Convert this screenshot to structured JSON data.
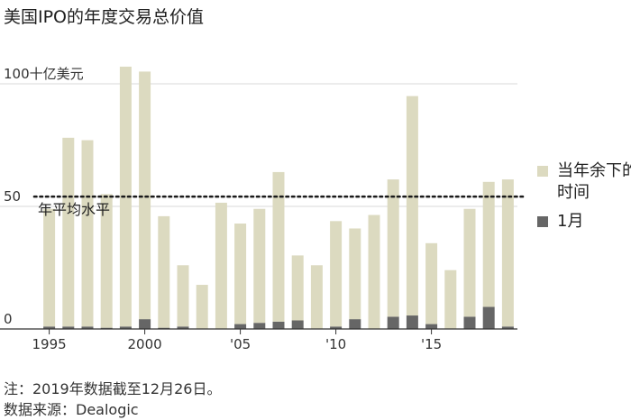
{
  "title": "美国IPO的年度交易总价值",
  "chart_data": {
    "type": "bar",
    "stacked": true,
    "categories": [
      "1995",
      "1996",
      "1997",
      "1998",
      "1999",
      "2000",
      "2001",
      "2002",
      "2003",
      "2004",
      "2005",
      "2006",
      "2007",
      "2008",
      "2009",
      "2010",
      "2011",
      "2012",
      "2013",
      "2014",
      "2015",
      "2016",
      "2017",
      "2018",
      "2019"
    ],
    "x_tick_labels": [
      {
        "category": "1995",
        "label": "1995"
      },
      {
        "category": "2000",
        "label": "2000"
      },
      {
        "category": "2005",
        "label": "'05"
      },
      {
        "category": "2010",
        "label": "'10"
      },
      {
        "category": "2015",
        "label": "'15"
      }
    ],
    "y_ticks": [
      {
        "value": 0,
        "label": "0"
      },
      {
        "value": 50,
        "label": "50"
      },
      {
        "value": 100,
        "label": "100十亿美元"
      }
    ],
    "ylim": [
      0,
      110
    ],
    "grid": true,
    "legend_position": "right",
    "series": [
      {
        "name": "1月",
        "color": "#666666",
        "values": [
          1.0,
          1.0,
          1.0,
          0.5,
          1.0,
          4.0,
          0.5,
          1.0,
          0.0,
          0.0,
          2.0,
          2.5,
          3.0,
          3.5,
          0.0,
          1.0,
          4.0,
          0.0,
          5.0,
          5.5,
          2.0,
          0.0,
          5.0,
          9.0,
          1.0
        ]
      },
      {
        "name": "当年余下的时间",
        "color": "#dcdac0",
        "values": [
          48,
          77,
          76,
          54.5,
          106,
          101,
          45.5,
          25,
          18,
          51.5,
          41,
          46.5,
          61,
          26.5,
          26,
          43,
          37,
          46.5,
          56,
          89.5,
          33,
          24,
          44,
          51,
          60
        ]
      }
    ],
    "reference_line": {
      "value": 54,
      "label": "年平均水平",
      "style": "dotted"
    }
  },
  "legend": {
    "items": [
      {
        "label": "当年余下的时间",
        "color": "#dcdac0"
      },
      {
        "label": "1月",
        "color": "#666666"
      }
    ]
  },
  "notes": {
    "note": "注：2019年数据截至12月26日。",
    "source": "数据来源：Dealogic"
  }
}
